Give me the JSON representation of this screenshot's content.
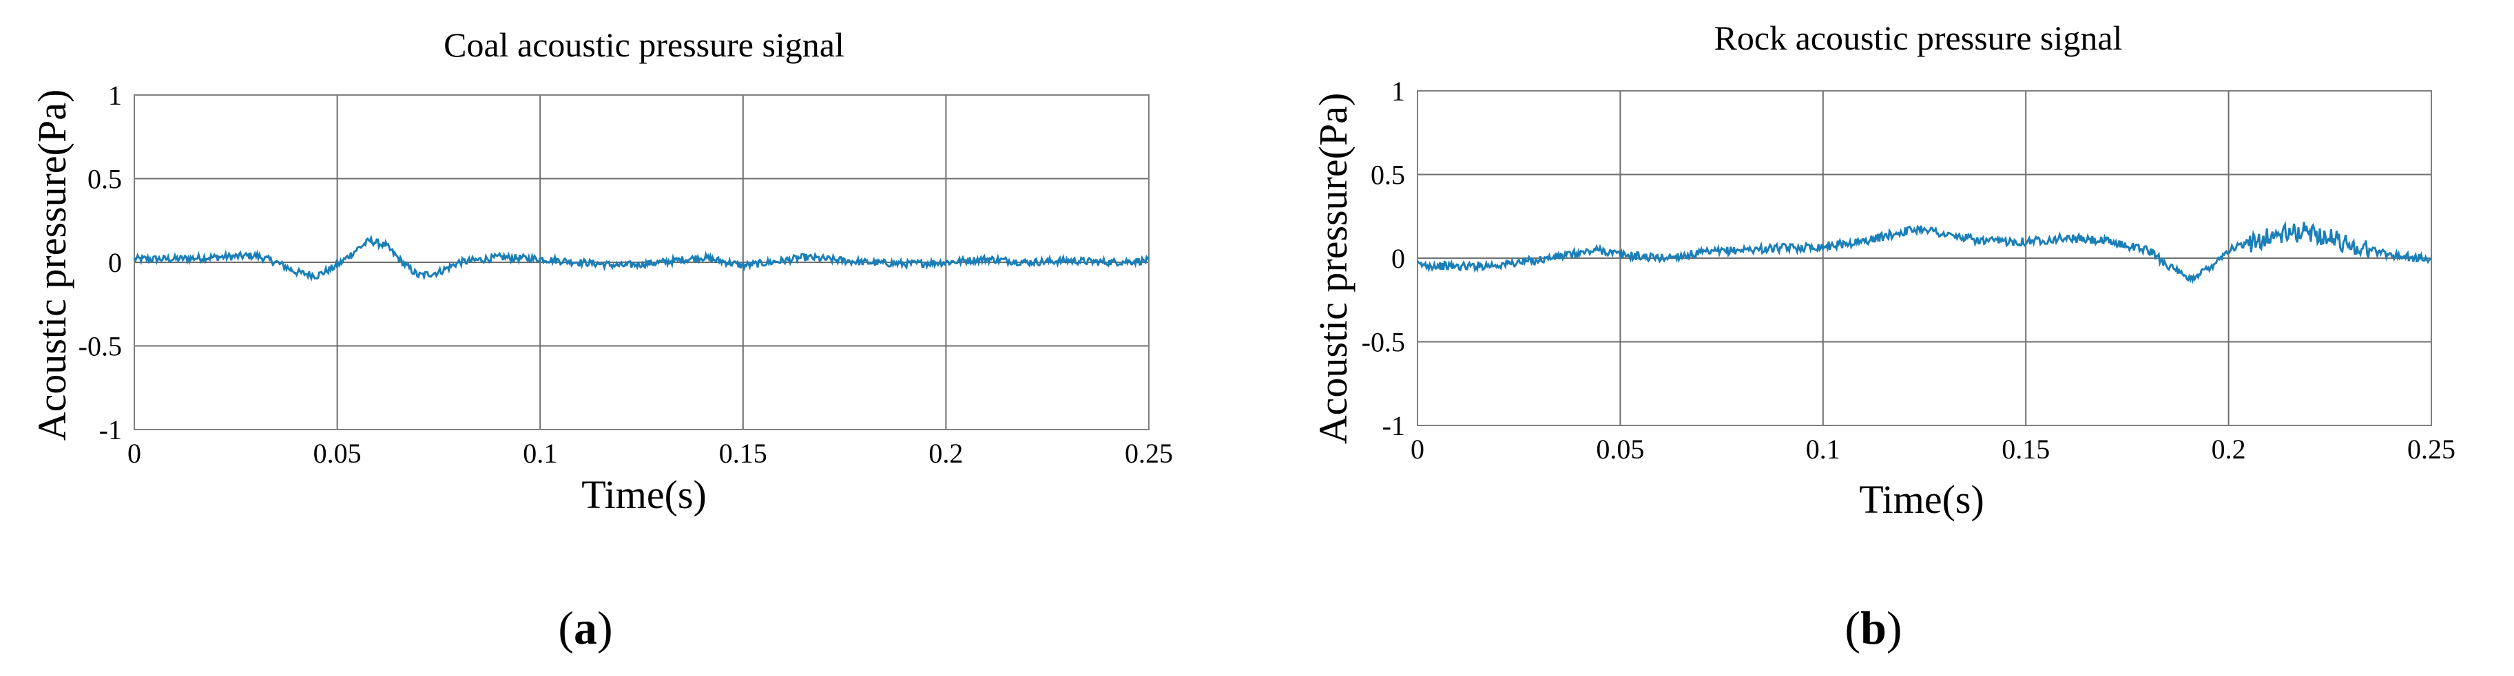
{
  "chart_data": [
    {
      "type": "line",
      "title": "Coal acoustic pressure signal",
      "xlabel": "Time(s)",
      "ylabel": "Acoustic pressure(Pa)",
      "xlim": [
        0,
        0.25
      ],
      "ylim": [
        -1,
        1
      ],
      "x_ticks": [
        "0",
        "0.05",
        "0.1",
        "0.15",
        "0.2",
        "0.25"
      ],
      "y_ticks": [
        "1",
        "0.5",
        "0",
        "-0.5",
        "-1"
      ],
      "grid": true,
      "color": "#1a7fb8",
      "caption": {
        "open": "(",
        "letter": "a",
        "close": ")"
      },
      "series": [
        {
          "x": [
            0,
            0.01,
            0.02,
            0.03,
            0.035,
            0.04,
            0.045,
            0.05,
            0.055,
            0.058,
            0.062,
            0.066,
            0.07,
            0.075,
            0.08,
            0.09,
            0.1,
            0.11,
            0.12,
            0.13,
            0.14,
            0.15,
            0.16,
            0.165,
            0.17,
            0.18,
            0.19,
            0.2,
            0.21,
            0.22,
            0.23,
            0.24,
            0.25
          ],
          "y": [
            0.02,
            0.02,
            0.03,
            0.04,
            0.0,
            -0.06,
            -0.08,
            -0.02,
            0.08,
            0.13,
            0.1,
            0.0,
            -0.08,
            -0.06,
            0.0,
            0.03,
            0.02,
            0.0,
            -0.02,
            0.0,
            0.03,
            -0.02,
            0.01,
            0.03,
            0.02,
            0.0,
            -0.01,
            0.0,
            0.02,
            0.0,
            0.01,
            0.0,
            0.01
          ]
        }
      ]
    },
    {
      "type": "line",
      "title": "Rock acoustic pressure signal",
      "xlabel": "Time(s)",
      "ylabel": "Acoustic pressure(Pa)",
      "xlim": [
        0,
        0.25
      ],
      "ylim": [
        -1,
        1
      ],
      "x_ticks": [
        "0",
        "0.05",
        "0.1",
        "0.15",
        "0.2",
        "0.25"
      ],
      "y_ticks": [
        "1",
        "0.5",
        "0",
        "-0.5",
        "-1"
      ],
      "grid": true,
      "color": "#1a7fb8",
      "caption": {
        "open": "(",
        "letter": "b",
        "close": ")"
      },
      "series": [
        {
          "x": [
            0,
            0.01,
            0.02,
            0.03,
            0.04,
            0.045,
            0.05,
            0.06,
            0.07,
            0.08,
            0.09,
            0.1,
            0.11,
            0.12,
            0.125,
            0.13,
            0.14,
            0.15,
            0.16,
            0.17,
            0.18,
            0.185,
            0.19,
            0.195,
            0.2,
            0.21,
            0.22,
            0.23,
            0.24,
            0.25
          ],
          "y": [
            -0.04,
            -0.05,
            -0.04,
            -0.01,
            0.03,
            0.05,
            0.02,
            0.0,
            0.03,
            0.05,
            0.06,
            0.07,
            0.1,
            0.16,
            0.18,
            0.14,
            0.1,
            0.1,
            0.12,
            0.1,
            0.05,
            -0.04,
            -0.13,
            -0.06,
            0.05,
            0.13,
            0.16,
            0.08,
            0.02,
            -0.01
          ]
        }
      ]
    }
  ]
}
